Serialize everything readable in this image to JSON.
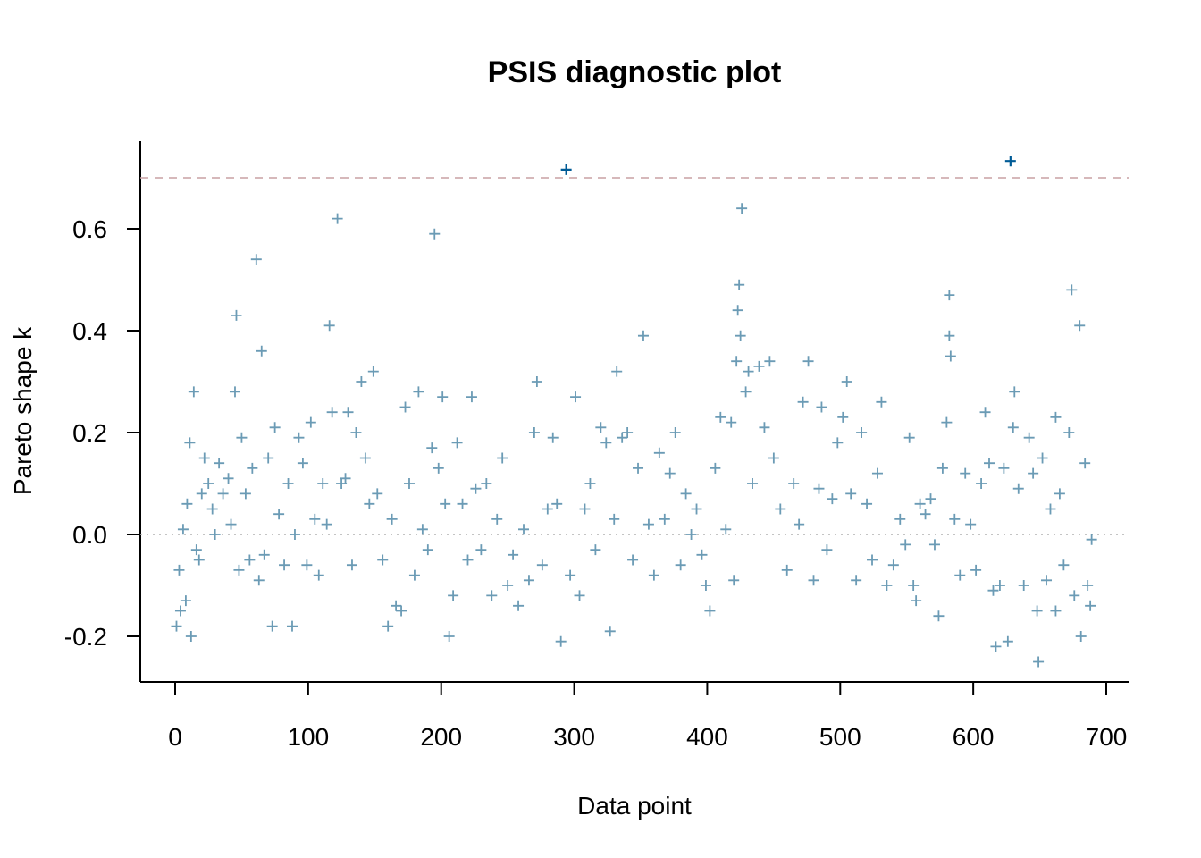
{
  "chart_data": {
    "type": "scatter",
    "title": "PSIS diagnostic plot",
    "xlabel": "Data point",
    "ylabel": "Pareto shape k",
    "xlim": [
      -25,
      715
    ],
    "ylim": [
      -0.29,
      0.77
    ],
    "xticks": [
      "0",
      "100",
      "200",
      "300",
      "400",
      "500",
      "600",
      "700"
    ],
    "xtick_values": [
      0,
      100,
      200,
      300,
      400,
      500,
      600,
      700
    ],
    "yticks": [
      "-0.2",
      "0.0",
      "0.2",
      "0.4",
      "0.6"
    ],
    "ytick_values": [
      -0.2,
      0,
      0.2,
      0.4,
      0.6
    ],
    "threshold": 0.7,
    "zero_line": 0,
    "colors": {
      "point": "#6b9bb5",
      "flagged": "#005b96",
      "threshold": "#c9a0a4",
      "zero": "#b0b0b0"
    },
    "points": [
      [
        1,
        -0.18
      ],
      [
        4,
        -0.15
      ],
      [
        8,
        -0.13
      ],
      [
        12,
        -0.2
      ],
      [
        14,
        0.28
      ],
      [
        11,
        0.18
      ],
      [
        3,
        -0.07
      ],
      [
        6,
        0.01
      ],
      [
        9,
        0.06
      ],
      [
        16,
        -0.03
      ],
      [
        18,
        -0.05
      ],
      [
        20,
        0.08
      ],
      [
        22,
        0.15
      ],
      [
        25,
        0.1
      ],
      [
        28,
        0.05
      ],
      [
        30,
        0.0
      ],
      [
        33,
        0.14
      ],
      [
        36,
        0.08
      ],
      [
        40,
        0.11
      ],
      [
        42,
        0.02
      ],
      [
        45,
        0.28
      ],
      [
        46,
        0.43
      ],
      [
        48,
        -0.07
      ],
      [
        50,
        0.19
      ],
      [
        53,
        0.08
      ],
      [
        56,
        -0.05
      ],
      [
        58,
        0.13
      ],
      [
        61,
        0.54
      ],
      [
        63,
        -0.09
      ],
      [
        65,
        0.36
      ],
      [
        67,
        -0.04
      ],
      [
        70,
        0.15
      ],
      [
        73,
        -0.18
      ],
      [
        75,
        0.21
      ],
      [
        78,
        0.04
      ],
      [
        82,
        -0.06
      ],
      [
        85,
        0.1
      ],
      [
        88,
        -0.18
      ],
      [
        90,
        0.0
      ],
      [
        93,
        0.19
      ],
      [
        96,
        0.14
      ],
      [
        99,
        -0.06
      ],
      [
        102,
        0.22
      ],
      [
        105,
        0.03
      ],
      [
        108,
        -0.08
      ],
      [
        111,
        0.1
      ],
      [
        114,
        0.02
      ],
      [
        116,
        0.41
      ],
      [
        118,
        0.24
      ],
      [
        122,
        0.62
      ],
      [
        125,
        0.1
      ],
      [
        128,
        0.11
      ],
      [
        130,
        0.24
      ],
      [
        133,
        -0.06
      ],
      [
        136,
        0.2
      ],
      [
        140,
        0.3
      ],
      [
        143,
        0.15
      ],
      [
        146,
        0.06
      ],
      [
        149,
        0.32
      ],
      [
        152,
        0.08
      ],
      [
        156,
        -0.05
      ],
      [
        160,
        -0.18
      ],
      [
        163,
        0.03
      ],
      [
        166,
        -0.14
      ],
      [
        170,
        -0.15
      ],
      [
        173,
        0.25
      ],
      [
        176,
        0.1
      ],
      [
        180,
        -0.08
      ],
      [
        183,
        0.28
      ],
      [
        186,
        0.01
      ],
      [
        190,
        -0.03
      ],
      [
        193,
        0.17
      ],
      [
        195,
        0.59
      ],
      [
        198,
        0.13
      ],
      [
        201,
        0.27
      ],
      [
        203,
        0.06
      ],
      [
        206,
        -0.2
      ],
      [
        209,
        -0.12
      ],
      [
        212,
        0.18
      ],
      [
        216,
        0.06
      ],
      [
        220,
        -0.05
      ],
      [
        223,
        0.27
      ],
      [
        226,
        0.09
      ],
      [
        230,
        -0.03
      ],
      [
        234,
        0.1
      ],
      [
        238,
        -0.12
      ],
      [
        242,
        0.03
      ],
      [
        246,
        0.15
      ],
      [
        250,
        -0.1
      ],
      [
        254,
        -0.04
      ],
      [
        258,
        -0.14
      ],
      [
        262,
        0.01
      ],
      [
        266,
        -0.09
      ],
      [
        270,
        0.2
      ],
      [
        272,
        0.3
      ],
      [
        276,
        -0.06
      ],
      [
        280,
        0.05
      ],
      [
        284,
        0.19
      ],
      [
        287,
        0.06
      ],
      [
        290,
        -0.21
      ],
      [
        294,
        0.716
      ],
      [
        297,
        -0.08
      ],
      [
        301,
        0.27
      ],
      [
        304,
        -0.12
      ],
      [
        308,
        0.05
      ],
      [
        312,
        0.1
      ],
      [
        316,
        -0.03
      ],
      [
        320,
        0.21
      ],
      [
        324,
        0.18
      ],
      [
        327,
        -0.19
      ],
      [
        330,
        0.03
      ],
      [
        332,
        0.32
      ],
      [
        336,
        0.19
      ],
      [
        340,
        0.2
      ],
      [
        344,
        -0.05
      ],
      [
        348,
        0.13
      ],
      [
        352,
        0.39
      ],
      [
        356,
        0.02
      ],
      [
        360,
        -0.08
      ],
      [
        364,
        0.16
      ],
      [
        368,
        0.03
      ],
      [
        372,
        0.12
      ],
      [
        376,
        0.2
      ],
      [
        380,
        -0.06
      ],
      [
        384,
        0.08
      ],
      [
        388,
        0.0
      ],
      [
        392,
        0.05
      ],
      [
        396,
        -0.04
      ],
      [
        399,
        -0.1
      ],
      [
        402,
        -0.15
      ],
      [
        406,
        0.13
      ],
      [
        410,
        0.23
      ],
      [
        414,
        0.01
      ],
      [
        418,
        0.22
      ],
      [
        420,
        -0.09
      ],
      [
        422,
        0.34
      ],
      [
        423,
        0.44
      ],
      [
        424,
        0.49
      ],
      [
        425,
        0.39
      ],
      [
        426,
        0.64
      ],
      [
        429,
        0.28
      ],
      [
        431,
        0.32
      ],
      [
        434,
        0.1
      ],
      [
        439,
        0.33
      ],
      [
        443,
        0.21
      ],
      [
        447,
        0.34
      ],
      [
        450,
        0.15
      ],
      [
        455,
        0.05
      ],
      [
        460,
        -0.07
      ],
      [
        465,
        0.1
      ],
      [
        469,
        0.02
      ],
      [
        472,
        0.26
      ],
      [
        476,
        0.34
      ],
      [
        480,
        -0.09
      ],
      [
        484,
        0.09
      ],
      [
        486,
        0.25
      ],
      [
        490,
        -0.03
      ],
      [
        494,
        0.07
      ],
      [
        498,
        0.18
      ],
      [
        502,
        0.23
      ],
      [
        505,
        0.3
      ],
      [
        508,
        0.08
      ],
      [
        512,
        -0.09
      ],
      [
        516,
        0.2
      ],
      [
        520,
        0.06
      ],
      [
        524,
        -0.05
      ],
      [
        528,
        0.12
      ],
      [
        531,
        0.26
      ],
      [
        535,
        -0.1
      ],
      [
        540,
        -0.06
      ],
      [
        545,
        0.03
      ],
      [
        549,
        -0.02
      ],
      [
        552,
        0.19
      ],
      [
        555,
        -0.1
      ],
      [
        557,
        -0.13
      ],
      [
        560,
        0.06
      ],
      [
        564,
        0.04
      ],
      [
        568,
        0.07
      ],
      [
        571,
        -0.02
      ],
      [
        574,
        -0.16
      ],
      [
        577,
        0.13
      ],
      [
        580,
        0.22
      ],
      [
        582,
        0.47
      ],
      [
        582,
        0.39
      ],
      [
        583,
        0.35
      ],
      [
        586,
        0.03
      ],
      [
        590,
        -0.08
      ],
      [
        594,
        0.12
      ],
      [
        598,
        0.02
      ],
      [
        602,
        -0.07
      ],
      [
        606,
        0.1
      ],
      [
        609,
        0.24
      ],
      [
        612,
        0.14
      ],
      [
        615,
        -0.11
      ],
      [
        617,
        -0.22
      ],
      [
        620,
        -0.1
      ],
      [
        623,
        0.13
      ],
      [
        626,
        -0.21
      ],
      [
        628,
        0.733
      ],
      [
        630,
        0.21
      ],
      [
        631,
        0.28
      ],
      [
        634,
        0.09
      ],
      [
        638,
        -0.1
      ],
      [
        642,
        0.19
      ],
      [
        645,
        0.12
      ],
      [
        648,
        -0.15
      ],
      [
        649,
        -0.25
      ],
      [
        652,
        0.15
      ],
      [
        655,
        -0.09
      ],
      [
        658,
        0.05
      ],
      [
        662,
        0.23
      ],
      [
        662,
        -0.15
      ],
      [
        665,
        0.08
      ],
      [
        668,
        -0.06
      ],
      [
        672,
        0.2
      ],
      [
        674,
        0.48
      ],
      [
        676,
        -0.12
      ],
      [
        680,
        0.41
      ],
      [
        681,
        -0.2
      ],
      [
        684,
        0.14
      ],
      [
        686,
        -0.1
      ],
      [
        688,
        -0.14
      ],
      [
        689,
        -0.01
      ]
    ]
  }
}
